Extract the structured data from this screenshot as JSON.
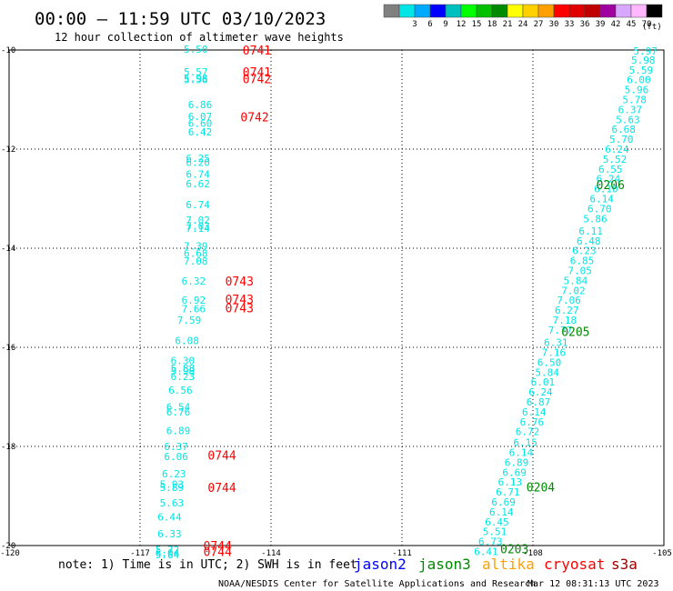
{
  "header": {
    "title": "00:00 – 11:59 UTC 03/10/2023",
    "subtitle": "12 hour collection of altimeter wave heights"
  },
  "colorbar": {
    "unit": "(ft)",
    "swatches": [
      {
        "label": "",
        "color": "#808080"
      },
      {
        "label": "3",
        "color": "#00e5e5"
      },
      {
        "label": "6",
        "color": "#00aaff"
      },
      {
        "label": "9",
        "color": "#0000ff"
      },
      {
        "label": "12",
        "color": "#00bfbf"
      },
      {
        "label": "15",
        "color": "#00ff00"
      },
      {
        "label": "18",
        "color": "#00c000"
      },
      {
        "label": "21",
        "color": "#008a00"
      },
      {
        "label": "24",
        "color": "#ffff00"
      },
      {
        "label": "27",
        "color": "#ffd000"
      },
      {
        "label": "30",
        "color": "#ffa000"
      },
      {
        "label": "33",
        "color": "#ff0000"
      },
      {
        "label": "36",
        "color": "#e00000"
      },
      {
        "label": "39",
        "color": "#c00000"
      },
      {
        "label": "42",
        "color": "#a000a0"
      },
      {
        "label": "45",
        "color": "#d8a8ff"
      },
      {
        "label": "70",
        "color": "#ffb8ff"
      },
      {
        "label": "",
        "color": "#000000"
      }
    ]
  },
  "axes": {
    "lon_ticks": [
      "-120",
      "-117",
      "-114",
      "-111",
      "-108",
      "-105"
    ],
    "lon_values": [
      -120,
      -117,
      -114,
      -111,
      -108,
      -105
    ],
    "lat_ticks": [
      "-10",
      "-12",
      "-14",
      "-16",
      "-18",
      "-20"
    ],
    "lat_values": [
      -10,
      -12,
      -14,
      -16,
      -18,
      -20
    ],
    "lon_range": [
      -120,
      -105
    ],
    "lat_range": [
      -20,
      -10
    ]
  },
  "tracks": [
    {
      "name": "west-track",
      "color": "#00e5e5",
      "points": [
        {
          "lon": -116.0,
          "lat": -9.98,
          "swh": "5.50"
        },
        {
          "lon": -116.0,
          "lat": -10.44,
          "swh": "5.57"
        },
        {
          "lon": -116.0,
          "lat": -10.57,
          "swh": "5.98"
        },
        {
          "lon": -116.0,
          "lat": -10.6,
          "swh": "5.56"
        },
        {
          "lon": -115.9,
          "lat": -11.1,
          "swh": "6.86"
        },
        {
          "lon": -115.9,
          "lat": -11.34,
          "swh": "6.07"
        },
        {
          "lon": -115.9,
          "lat": -11.48,
          "swh": "6.60"
        },
        {
          "lon": -115.9,
          "lat": -11.65,
          "swh": "6.42"
        },
        {
          "lon": -115.95,
          "lat": -12.18,
          "swh": "6.25"
        },
        {
          "lon": -115.95,
          "lat": -12.27,
          "swh": "6.20"
        },
        {
          "lon": -115.95,
          "lat": -12.5,
          "swh": "6.74"
        },
        {
          "lon": -115.95,
          "lat": -12.7,
          "swh": "6.62"
        },
        {
          "lon": -115.95,
          "lat": -13.12,
          "swh": "6.74"
        },
        {
          "lon": -115.95,
          "lat": -13.43,
          "swh": "7.02"
        },
        {
          "lon": -115.95,
          "lat": -13.55,
          "swh": "7.03"
        },
        {
          "lon": -115.95,
          "lat": -13.6,
          "swh": "7.14"
        },
        {
          "lon": -116.0,
          "lat": -13.95,
          "swh": "7.39"
        },
        {
          "lon": -116.0,
          "lat": -14.1,
          "swh": "6.68"
        },
        {
          "lon": -116.0,
          "lat": -14.26,
          "swh": "7.08"
        },
        {
          "lon": -116.05,
          "lat": -14.66,
          "swh": "6.32"
        },
        {
          "lon": -116.05,
          "lat": -15.05,
          "swh": "6.92"
        },
        {
          "lon": -116.05,
          "lat": -15.22,
          "swh": "7.66"
        },
        {
          "lon": -116.15,
          "lat": -15.45,
          "swh": "7.59"
        },
        {
          "lon": -116.2,
          "lat": -15.86,
          "swh": "6.08"
        },
        {
          "lon": -116.3,
          "lat": -16.27,
          "swh": "6.30"
        },
        {
          "lon": -116.3,
          "lat": -16.42,
          "swh": "5.88"
        },
        {
          "lon": -116.3,
          "lat": -16.48,
          "swh": "5.98"
        },
        {
          "lon": -116.3,
          "lat": -16.59,
          "swh": "6.23"
        },
        {
          "lon": -116.35,
          "lat": -16.86,
          "swh": "6.56"
        },
        {
          "lon": -116.4,
          "lat": -17.2,
          "swh": "6.54"
        },
        {
          "lon": -116.4,
          "lat": -17.3,
          "swh": "6.76"
        },
        {
          "lon": -116.4,
          "lat": -17.68,
          "swh": "6.89"
        },
        {
          "lon": -116.45,
          "lat": -18.0,
          "swh": "6.37"
        },
        {
          "lon": -116.45,
          "lat": -18.2,
          "swh": "6.06"
        },
        {
          "lon": -116.5,
          "lat": -18.55,
          "swh": "6.23"
        },
        {
          "lon": -116.55,
          "lat": -18.76,
          "swh": "5.93"
        },
        {
          "lon": -116.55,
          "lat": -18.83,
          "swh": "5.89"
        },
        {
          "lon": -116.55,
          "lat": -19.14,
          "swh": "5.63"
        },
        {
          "lon": -116.6,
          "lat": -19.42,
          "swh": "6.44"
        },
        {
          "lon": -116.6,
          "lat": -19.76,
          "swh": "6.33"
        },
        {
          "lon": -116.65,
          "lat": -20.08,
          "swh": "5.72"
        },
        {
          "lon": -116.65,
          "lat": -20.15,
          "swh": "6.04"
        },
        {
          "lon": -116.65,
          "lat": -20.18,
          "swh": "5.84"
        }
      ]
    },
    {
      "name": "east-track",
      "color": "#00e5e5",
      "points": [
        {
          "lon": -105.7,
          "lat": -10.02,
          "swh": "5.97"
        },
        {
          "lon": -105.75,
          "lat": -10.2,
          "swh": "5.98"
        },
        {
          "lon": -105.8,
          "lat": -10.4,
          "swh": "5.59"
        },
        {
          "lon": -105.85,
          "lat": -10.6,
          "swh": "6.00"
        },
        {
          "lon": -105.9,
          "lat": -10.8,
          "swh": "5.96"
        },
        {
          "lon": -105.95,
          "lat": -11.0,
          "swh": "5.78"
        },
        {
          "lon": -106.05,
          "lat": -11.2,
          "swh": "6.37"
        },
        {
          "lon": -106.1,
          "lat": -11.4,
          "swh": "5.63"
        },
        {
          "lon": -106.2,
          "lat": -11.6,
          "swh": "6.68"
        },
        {
          "lon": -106.25,
          "lat": -11.8,
          "swh": "5.70"
        },
        {
          "lon": -106.35,
          "lat": -12.0,
          "swh": "6.24"
        },
        {
          "lon": -106.4,
          "lat": -12.2,
          "swh": "5.52"
        },
        {
          "lon": -106.5,
          "lat": -12.4,
          "swh": "6.55"
        },
        {
          "lon": -106.55,
          "lat": -12.6,
          "swh": "6.24"
        },
        {
          "lon": -106.6,
          "lat": -12.8,
          "swh": "6.10"
        },
        {
          "lon": -106.7,
          "lat": -13.0,
          "swh": "6.14"
        },
        {
          "lon": -106.75,
          "lat": -13.2,
          "swh": "6.70"
        },
        {
          "lon": -106.85,
          "lat": -13.4,
          "swh": "5.86"
        },
        {
          "lon": -106.95,
          "lat": -13.65,
          "swh": "6.11"
        },
        {
          "lon": -107.0,
          "lat": -13.85,
          "swh": "6.48"
        },
        {
          "lon": -107.1,
          "lat": -14.05,
          "swh": "6.23"
        },
        {
          "lon": -107.15,
          "lat": -14.25,
          "swh": "6.85"
        },
        {
          "lon": -107.2,
          "lat": -14.45,
          "swh": "7.05"
        },
        {
          "lon": -107.3,
          "lat": -14.65,
          "swh": "5.84"
        },
        {
          "lon": -107.35,
          "lat": -14.85,
          "swh": "7.02"
        },
        {
          "lon": -107.45,
          "lat": -15.05,
          "swh": "7.06"
        },
        {
          "lon": -107.5,
          "lat": -15.25,
          "swh": "6.27"
        },
        {
          "lon": -107.55,
          "lat": -15.45,
          "swh": "7.18"
        },
        {
          "lon": -107.65,
          "lat": -15.65,
          "swh": "7.77"
        },
        {
          "lon": -107.75,
          "lat": -15.9,
          "swh": "6.31"
        },
        {
          "lon": -107.8,
          "lat": -16.1,
          "swh": "7.16"
        },
        {
          "lon": -107.9,
          "lat": -16.3,
          "swh": "6.50"
        },
        {
          "lon": -107.95,
          "lat": -16.5,
          "swh": "5.84"
        },
        {
          "lon": -108.05,
          "lat": -16.7,
          "swh": "6.01"
        },
        {
          "lon": -108.1,
          "lat": -16.9,
          "swh": "6.24"
        },
        {
          "lon": -108.15,
          "lat": -17.1,
          "swh": "6.87"
        },
        {
          "lon": -108.25,
          "lat": -17.3,
          "swh": "6.14"
        },
        {
          "lon": -108.3,
          "lat": -17.5,
          "swh": "6.76"
        },
        {
          "lon": -108.4,
          "lat": -17.7,
          "swh": "6.72"
        },
        {
          "lon": -108.45,
          "lat": -17.92,
          "swh": "6.15"
        },
        {
          "lon": -108.55,
          "lat": -18.12,
          "swh": "6.14"
        },
        {
          "lon": -108.65,
          "lat": -18.32,
          "swh": "6.89"
        },
        {
          "lon": -108.7,
          "lat": -18.52,
          "swh": "6.69"
        },
        {
          "lon": -108.8,
          "lat": -18.72,
          "swh": "6.13"
        },
        {
          "lon": -108.85,
          "lat": -18.92,
          "swh": "6.71"
        },
        {
          "lon": -108.95,
          "lat": -19.12,
          "swh": "6.69"
        },
        {
          "lon": -109.0,
          "lat": -19.32,
          "swh": "6.14"
        },
        {
          "lon": -109.1,
          "lat": -19.52,
          "swh": "6.45"
        },
        {
          "lon": -109.15,
          "lat": -19.72,
          "swh": "5.51"
        },
        {
          "lon": -109.25,
          "lat": -19.92,
          "swh": "6.73"
        },
        {
          "lon": -109.35,
          "lat": -20.12,
          "swh": "6.41"
        }
      ]
    }
  ],
  "time_labels": [
    {
      "text": "0741",
      "lon": -114.65,
      "lat": -10.0,
      "color": "#ff0000"
    },
    {
      "text": "0741",
      "lon": -114.65,
      "lat": -10.44,
      "color": "#ff0000"
    },
    {
      "text": "0742",
      "lon": -114.65,
      "lat": -10.58,
      "color": "#ff0000"
    },
    {
      "text": "0742",
      "lon": -114.7,
      "lat": -11.35,
      "color": "#ff0000"
    },
    {
      "text": "0743",
      "lon": -115.05,
      "lat": -14.66,
      "color": "#ff0000"
    },
    {
      "text": "0743",
      "lon": -115.05,
      "lat": -15.03,
      "color": "#ff0000"
    },
    {
      "text": "0743",
      "lon": -115.05,
      "lat": -15.2,
      "color": "#ff0000"
    },
    {
      "text": "0744",
      "lon": -115.45,
      "lat": -18.17,
      "color": "#ff0000"
    },
    {
      "text": "0744",
      "lon": -115.45,
      "lat": -18.83,
      "color": "#ff0000"
    },
    {
      "text": "0744",
      "lon": -115.55,
      "lat": -20.0,
      "color": "#ff0000"
    },
    {
      "text": "0744",
      "lon": -115.55,
      "lat": -20.12,
      "color": "#ff0000"
    },
    {
      "text": "0206",
      "lon": -106.55,
      "lat": -12.72,
      "color": "#008a00"
    },
    {
      "text": "0205",
      "lon": -107.35,
      "lat": -15.68,
      "color": "#008a00"
    },
    {
      "text": "0204",
      "lon": -108.15,
      "lat": -18.82,
      "color": "#008a00"
    },
    {
      "text": "0203",
      "lon": -108.75,
      "lat": -20.06,
      "color": "#008a00"
    }
  ],
  "footer": {
    "note": "note: 1) Time is in UTC; 2) SWH is in feet",
    "legend": [
      {
        "label": "jason2",
        "color": "#0000ff"
      },
      {
        "label": "jason3",
        "color": "#008a00"
      },
      {
        "label": "altika",
        "color": "#ffa000"
      },
      {
        "label": "cryosat",
        "color": "#ff0000"
      },
      {
        "label": "s3a",
        "color": "#a00000"
      }
    ],
    "credit": "NOAA/NESDIS Center for Satellite Applications and Research",
    "timestamp": "Mar 12 08:31:13 UTC 2023"
  }
}
